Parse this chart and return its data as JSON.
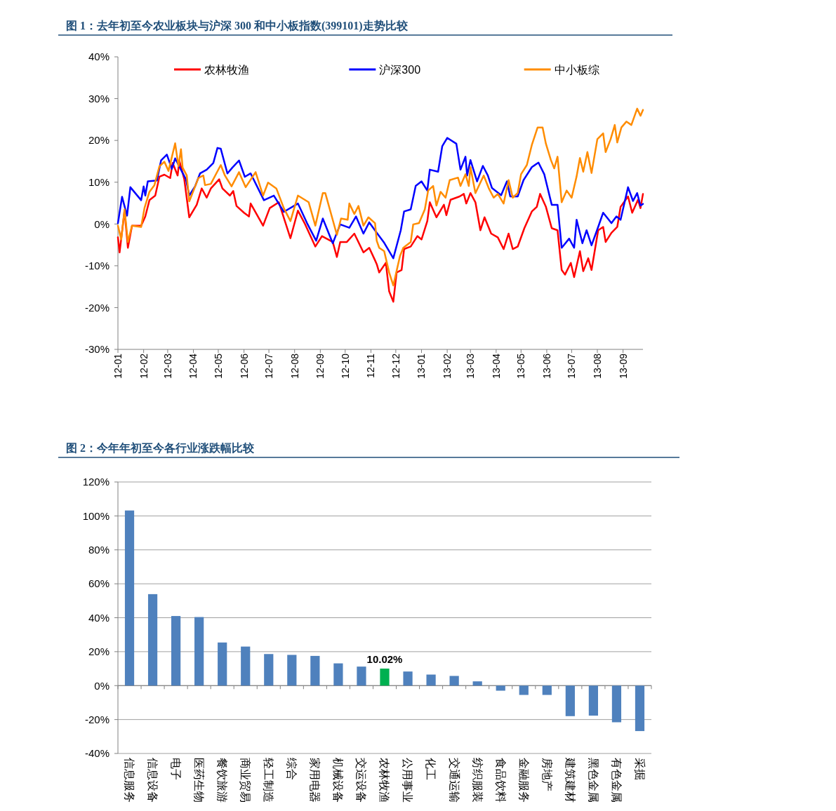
{
  "chart_data": [
    {
      "type": "line",
      "title": "图 1：去年初至今农业板块与沪深 300 和中小板指数(399101)走势比较",
      "legend": "top",
      "xlim": [
        "2012-01-01",
        "2013-09-25"
      ],
      "xticks": [
        {
          "value": "2012-01",
          "label": "12-01"
        },
        {
          "value": "2012-02",
          "label": "12-02"
        },
        {
          "value": "2012-03",
          "label": "12-03"
        },
        {
          "value": "2012-04",
          "label": "12-04"
        },
        {
          "value": "2012-05",
          "label": "12-05"
        },
        {
          "value": "2012-06",
          "label": "12-06"
        },
        {
          "value": "2012-07",
          "label": "12-07"
        },
        {
          "value": "2012-08",
          "label": "12-08"
        },
        {
          "value": "2012-09",
          "label": "12-09"
        },
        {
          "value": "2012-10",
          "label": "12-10"
        },
        {
          "value": "2012-11",
          "label": "12-11"
        },
        {
          "value": "2012-12",
          "label": "12-12"
        },
        {
          "value": "2013-01",
          "label": "13-01"
        },
        {
          "value": "2013-02",
          "label": "13-02"
        },
        {
          "value": "2013-03",
          "label": "13-03"
        },
        {
          "value": "2013-04",
          "label": "13-04"
        },
        {
          "value": "2013-05",
          "label": "13-05"
        },
        {
          "value": "2013-06",
          "label": "13-06"
        },
        {
          "value": "2013-07",
          "label": "13-07"
        },
        {
          "value": "2013-08",
          "label": "13-08"
        },
        {
          "value": "2013-09",
          "label": "13-09"
        }
      ],
      "ylim": [
        -30,
        40
      ],
      "yticks": [
        {
          "value": -30,
          "label": "-30%"
        },
        {
          "value": -20,
          "label": "-20%"
        },
        {
          "value": -10,
          "label": "-10%"
        },
        {
          "value": 0,
          "label": "0%"
        },
        {
          "value": 10,
          "label": "10%"
        },
        {
          "value": 20,
          "label": "20%"
        },
        {
          "value": 30,
          "label": "30%"
        },
        {
          "value": 40,
          "label": "40%"
        }
      ],
      "series": [
        {
          "name": "农林牧渔",
          "color": "#ff0000",
          "x": [
            "2012-01-01",
            "2012-01-03",
            "2012-01-09",
            "2012-01-13",
            "2012-01-18",
            "2012-01-29",
            "2012-02-03",
            "2012-02-08",
            "2012-02-15",
            "2012-02-20",
            "2012-02-26",
            "2012-03-04",
            "2012-03-07",
            "2012-03-13",
            "2012-03-15",
            "2012-03-21",
            "2012-03-27",
            "2012-04-05",
            "2012-04-11",
            "2012-04-17",
            "2012-04-22",
            "2012-05-02",
            "2012-05-06",
            "2012-05-15",
            "2012-05-19",
            "2012-05-23",
            "2012-06-01",
            "2012-06-07",
            "2012-06-09",
            "2012-06-24",
            "2012-07-02",
            "2012-07-13",
            "2012-07-27",
            "2012-08-05",
            "2012-08-13",
            "2012-08-26",
            "2012-09-03",
            "2012-09-16",
            "2012-09-21",
            "2012-09-25",
            "2012-10-03",
            "2012-10-12",
            "2012-10-23",
            "2012-10-30",
            "2012-11-06",
            "2012-11-08",
            "2012-11-11",
            "2012-11-19",
            "2012-11-23",
            "2012-11-28",
            "2012-12-02",
            "2012-12-08",
            "2012-12-11",
            "2012-12-19",
            "2012-12-27",
            "2013-01-01",
            "2013-01-08",
            "2013-01-11",
            "2013-01-19",
            "2013-01-28",
            "2013-01-31",
            "2013-02-05",
            "2013-02-16",
            "2013-02-21",
            "2013-02-24",
            "2013-03-01",
            "2013-03-07",
            "2013-03-13",
            "2013-03-18",
            "2013-03-26",
            "2013-04-03",
            "2013-04-10",
            "2013-04-16",
            "2013-04-21",
            "2013-04-27",
            "2013-05-05",
            "2013-05-14",
            "2013-05-20",
            "2013-05-24",
            "2013-05-31",
            "2013-06-07",
            "2013-06-14",
            "2013-06-19",
            "2013-06-23",
            "2013-06-30",
            "2013-07-04",
            "2013-07-11",
            "2013-07-15",
            "2013-07-21",
            "2013-07-25",
            "2013-08-02",
            "2013-08-08",
            "2013-08-11",
            "2013-08-18",
            "2013-08-25",
            "2013-08-29",
            "2013-09-07",
            "2013-09-12",
            "2013-09-19",
            "2013-09-22",
            "2013-09-25"
          ],
          "values": [
            -3.2,
            -6.8,
            3.2,
            -5.7,
            -0.4,
            -0.4,
            1.8,
            5.7,
            6.8,
            11.3,
            11.8,
            11,
            14.6,
            11.6,
            15.2,
            10.7,
            1.6,
            4.6,
            8.5,
            6.3,
            8.5,
            10.7,
            8.5,
            6.8,
            7.9,
            4.3,
            2.7,
            1.8,
            4.9,
            -0.4,
            3.8,
            5.2,
            -3.4,
            3.2,
            0.2,
            -5.4,
            -2.9,
            -4.3,
            -7.9,
            -4.3,
            -4.3,
            -2.3,
            -6.8,
            -5.7,
            -8.7,
            -9.6,
            -11.6,
            -9.3,
            -16.1,
            -18.6,
            -11.6,
            -11,
            -6,
            -5.4,
            -2.9,
            -3.7,
            0.7,
            5.2,
            1.6,
            4.6,
            2.1,
            5.8,
            6.6,
            7.2,
            4.9,
            7.4,
            5.2,
            -1.5,
            1.6,
            -2.3,
            -3.2,
            -6,
            -2.3,
            -6,
            -5.4,
            -1,
            3,
            4.1,
            7.2,
            4.1,
            -1,
            -1.5,
            -11,
            -12.1,
            -9.3,
            -12.7,
            -6.5,
            -11.3,
            -8.2,
            -11,
            -1.5,
            -0.7,
            -4.3,
            -2.1,
            -0.7,
            4.1,
            6.6,
            2.7,
            5.8,
            3.8,
            7.2
          ]
        },
        {
          "name": "沪深300",
          "color": "#0000ff",
          "x": [
            "2012-01-01",
            "2012-01-06",
            "2012-01-12",
            "2012-01-16",
            "2012-01-29",
            "2012-02-01",
            "2012-02-03",
            "2012-02-06",
            "2012-02-17",
            "2012-02-22",
            "2012-02-29",
            "2012-03-06",
            "2012-03-10",
            "2012-03-17",
            "2012-03-23",
            "2012-03-27",
            "2012-04-03",
            "2012-04-09",
            "2012-04-17",
            "2012-04-25",
            "2012-04-30",
            "2012-05-04",
            "2012-05-12",
            "2012-05-18",
            "2012-05-26",
            "2012-06-02",
            "2012-06-09",
            "2012-06-25",
            "2012-07-07",
            "2012-07-19",
            "2012-08-05",
            "2012-08-16",
            "2012-08-27",
            "2012-09-04",
            "2012-09-16",
            "2012-09-25",
            "2012-10-06",
            "2012-10-14",
            "2012-10-23",
            "2012-10-30",
            "2012-11-08",
            "2012-11-17",
            "2012-11-28",
            "2012-12-07",
            "2012-12-11",
            "2012-12-19",
            "2012-12-25",
            "2013-01-01",
            "2013-01-08",
            "2013-01-11",
            "2013-01-21",
            "2013-01-26",
            "2013-02-01",
            "2013-02-12",
            "2013-02-17",
            "2013-02-23",
            "2013-02-25",
            "2013-03-01",
            "2013-03-09",
            "2013-03-16",
            "2013-03-22",
            "2013-03-27",
            "2013-04-07",
            "2013-04-14",
            "2013-04-18",
            "2013-04-27",
            "2013-05-04",
            "2013-05-14",
            "2013-05-22",
            "2013-05-29",
            "2013-06-07",
            "2013-06-14",
            "2013-06-19",
            "2013-06-28",
            "2013-07-04",
            "2013-07-07",
            "2013-07-14",
            "2013-07-19",
            "2013-07-25",
            "2013-08-02",
            "2013-08-08",
            "2013-08-18",
            "2013-08-24",
            "2013-08-29",
            "2013-09-07",
            "2013-09-13",
            "2013-09-18",
            "2013-09-22",
            "2013-09-25"
          ],
          "values": [
            0.2,
            6.5,
            2,
            8.8,
            5.7,
            9,
            6.8,
            10.2,
            10.4,
            15.2,
            16.6,
            13.2,
            15.7,
            13,
            10.7,
            6.8,
            9,
            12.1,
            13,
            14.6,
            18.2,
            18,
            12.1,
            13.5,
            15.2,
            11.3,
            12.1,
            5.7,
            6.8,
            2.9,
            4.9,
            0.2,
            -4,
            1.3,
            -4.6,
            -0.1,
            -0.9,
            1.8,
            -2.3,
            0.4,
            -2.1,
            -4.5,
            -8.2,
            -1.5,
            3,
            3.5,
            9.1,
            10.2,
            8,
            13,
            12.5,
            18.6,
            20.6,
            19.2,
            13,
            16.1,
            11.6,
            15.3,
            10.2,
            13.9,
            11.6,
            8.6,
            6.9,
            10.2,
            6.6,
            6.6,
            10.5,
            13.6,
            14.7,
            11.9,
            4.6,
            4.6,
            -5.7,
            -3.5,
            -5.7,
            1,
            -4.6,
            -1.5,
            -5.1,
            -0.7,
            2.7,
            0.2,
            1.8,
            1,
            8.8,
            5.5,
            7.4,
            4.4,
            4.8
          ]
        },
        {
          "name": "中小板综",
          "color": "#ff8c00",
          "x": [
            "2012-01-01",
            "2012-01-05",
            "2012-01-09",
            "2012-01-13",
            "2012-01-18",
            "2012-01-29",
            "2012-02-02",
            "2012-02-08",
            "2012-02-14",
            "2012-02-20",
            "2012-02-26",
            "2012-03-02",
            "2012-03-10",
            "2012-03-14",
            "2012-03-17",
            "2012-03-19",
            "2012-03-24",
            "2012-03-27",
            "2012-04-07",
            "2012-04-13",
            "2012-04-15",
            "2012-04-22",
            "2012-05-04",
            "2012-05-09",
            "2012-05-17",
            "2012-05-26",
            "2012-06-03",
            "2012-06-15",
            "2012-06-24",
            "2012-06-30",
            "2012-07-10",
            "2012-07-19",
            "2012-07-27",
            "2012-08-05",
            "2012-08-18",
            "2012-08-26",
            "2012-09-04",
            "2012-09-07",
            "2012-09-21",
            "2012-09-26",
            "2012-10-04",
            "2012-10-06",
            "2012-10-12",
            "2012-10-17",
            "2012-10-23",
            "2012-10-29",
            "2012-11-06",
            "2012-11-08",
            "2012-11-11",
            "2012-11-17",
            "2012-11-23",
            "2012-11-28",
            "2012-12-06",
            "2012-12-10",
            "2012-12-19",
            "2012-12-22",
            "2012-12-29",
            "2013-01-05",
            "2013-01-09",
            "2013-01-15",
            "2013-01-19",
            "2013-01-24",
            "2013-01-30",
            "2013-02-04",
            "2013-02-14",
            "2013-02-17",
            "2013-02-23",
            "2013-02-27",
            "2013-03-01",
            "2013-03-07",
            "2013-03-17",
            "2013-03-23",
            "2013-03-29",
            "2013-04-03",
            "2013-04-10",
            "2013-04-16",
            "2013-04-21",
            "2013-04-27",
            "2013-05-01",
            "2013-05-08",
            "2013-05-14",
            "2013-05-21",
            "2013-05-27",
            "2013-05-31",
            "2013-06-06",
            "2013-06-10",
            "2013-06-14",
            "2013-06-19",
            "2013-06-25",
            "2013-07-01",
            "2013-07-07",
            "2013-07-11",
            "2013-07-15",
            "2013-07-20",
            "2013-07-25",
            "2013-08-01",
            "2013-08-08",
            "2013-08-11",
            "2013-08-17",
            "2013-08-22",
            "2013-08-25",
            "2013-08-30",
            "2013-09-05",
            "2013-09-11",
            "2013-09-18",
            "2013-09-22",
            "2013-09-25"
          ],
          "values": [
            -0.4,
            -3.7,
            3.5,
            -4.3,
            -0.4,
            -0.7,
            3.8,
            7.7,
            9.3,
            13.8,
            14.9,
            12.7,
            19.3,
            13.8,
            17.9,
            13.5,
            11.6,
            5.4,
            11,
            11.6,
            9.3,
            9.6,
            14.1,
            11.6,
            9,
            12.4,
            8.8,
            12.4,
            6.8,
            9.9,
            8.5,
            3.8,
            0.7,
            6.8,
            5.2,
            -0.4,
            7.4,
            7.4,
            -2.6,
            1.3,
            1,
            4.9,
            2.4,
            4.3,
            -0.4,
            1.6,
            0.2,
            -4,
            -5.7,
            -6.5,
            -11.6,
            -14.7,
            -7.7,
            -5.7,
            -4.3,
            -0.1,
            0.2,
            3.5,
            8,
            9.1,
            4.4,
            7.7,
            6.3,
            10.5,
            11.1,
            9.1,
            11.9,
            9.1,
            13.6,
            7.4,
            11.6,
            8.6,
            6.3,
            7.2,
            4.9,
            10.5,
            6.3,
            7.4,
            11.9,
            14.1,
            18.9,
            23.1,
            23.1,
            19.2,
            15.3,
            13.3,
            16.1,
            5.2,
            8,
            6.3,
            11.4,
            15.8,
            12.5,
            17.2,
            12.2,
            20.3,
            21.7,
            17.2,
            20.3,
            23.7,
            19.5,
            23.1,
            24.5,
            23.7,
            27.6,
            25.9,
            27.3
          ]
        }
      ]
    },
    {
      "type": "bar",
      "title": "图 2：今年年初至今各行业涨跌幅比较",
      "grid": "y",
      "categories": [
        "信息服务",
        "信息设备",
        "电子",
        "医药生物",
        "餐饮旅游",
        "商业贸易",
        "轻工制造",
        "综合",
        "家用电器",
        "机械设备",
        "交运设备",
        "农林牧渔",
        "公用事业",
        "化工",
        "交通运输",
        "纺织服装",
        "食品饮料",
        "金融服务",
        "房地产",
        "建筑建材",
        "黑色金属",
        "有色金属",
        "采掘"
      ],
      "values": [
        103.2,
        53.9,
        41,
        40.4,
        25.4,
        23,
        18.6,
        18.1,
        17.5,
        13.1,
        11.2,
        10.02,
        8.3,
        6.5,
        5.7,
        2.5,
        -3,
        -5.5,
        -5.5,
        -18,
        -17.7,
        -21.6,
        -26.8
      ],
      "colors": [
        "#4f81bd",
        "#4f81bd",
        "#4f81bd",
        "#4f81bd",
        "#4f81bd",
        "#4f81bd",
        "#4f81bd",
        "#4f81bd",
        "#4f81bd",
        "#4f81bd",
        "#4f81bd",
        "#00b050",
        "#4f81bd",
        "#4f81bd",
        "#4f81bd",
        "#4f81bd",
        "#4f81bd",
        "#4f81bd",
        "#4f81bd",
        "#4f81bd",
        "#4f81bd",
        "#4f81bd",
        "#4f81bd"
      ],
      "value_labels": [
        null,
        null,
        null,
        null,
        null,
        null,
        null,
        null,
        null,
        null,
        null,
        "10.02%",
        null,
        null,
        null,
        null,
        null,
        null,
        null,
        null,
        null,
        null,
        null
      ],
      "ylim": [
        -40,
        120
      ],
      "yticks": [
        {
          "value": -40,
          "label": "-40%"
        },
        {
          "value": -20,
          "label": "-20%"
        },
        {
          "value": 0,
          "label": "0%"
        },
        {
          "value": 20,
          "label": "20%"
        },
        {
          "value": 40,
          "label": "40%"
        },
        {
          "value": 60,
          "label": "60%"
        },
        {
          "value": 80,
          "label": "80%"
        },
        {
          "value": 100,
          "label": "100%"
        },
        {
          "value": 120,
          "label": "120%"
        }
      ]
    }
  ]
}
